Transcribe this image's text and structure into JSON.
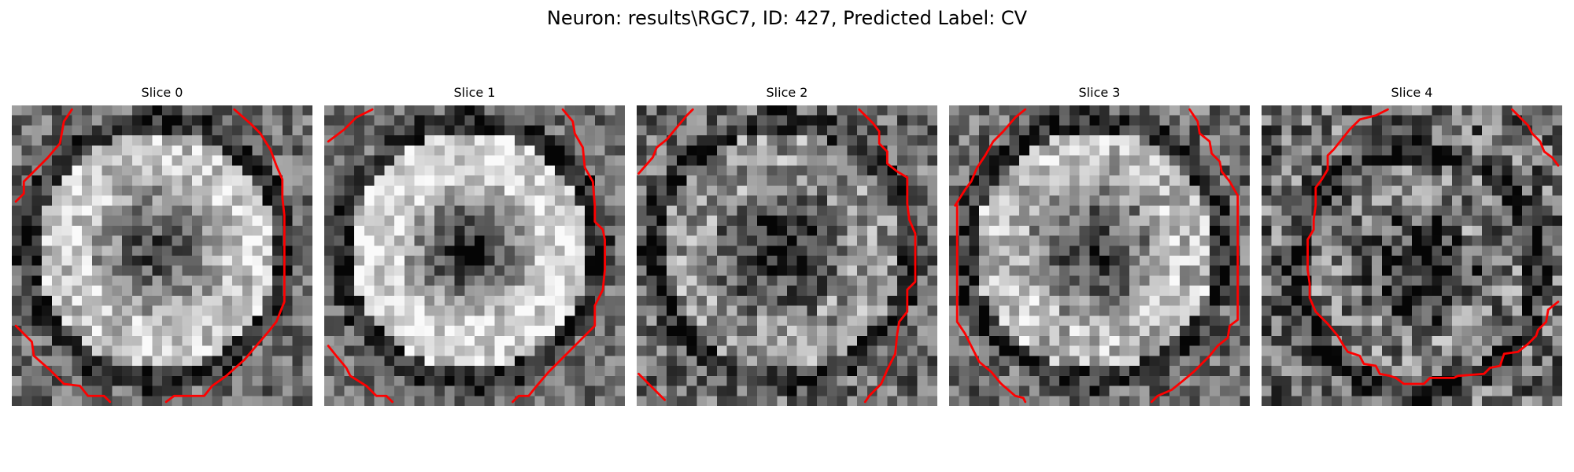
{
  "figure": {
    "suptitle": "Neuron: results\\RGC7, ID: 427, Predicted Label: CV",
    "contour_color": "#ff0000",
    "slices": [
      {
        "title": "Slice 0",
        "seed": 11,
        "ring_brightness": 0.78,
        "center_darkness": 0.45,
        "noise": 0.24
      },
      {
        "title": "Slice 1",
        "seed": 29,
        "ring_brightness": 0.84,
        "center_darkness": 0.68,
        "noise": 0.22
      },
      {
        "title": "Slice 2",
        "seed": 47,
        "ring_brightness": 0.58,
        "center_darkness": 0.38,
        "noise": 0.28
      },
      {
        "title": "Slice 3",
        "seed": 71,
        "ring_brightness": 0.72,
        "center_darkness": 0.42,
        "noise": 0.26
      },
      {
        "title": "Slice 4",
        "seed": 97,
        "ring_brightness": 0.48,
        "center_darkness": 0.24,
        "noise": 0.34
      }
    ]
  }
}
